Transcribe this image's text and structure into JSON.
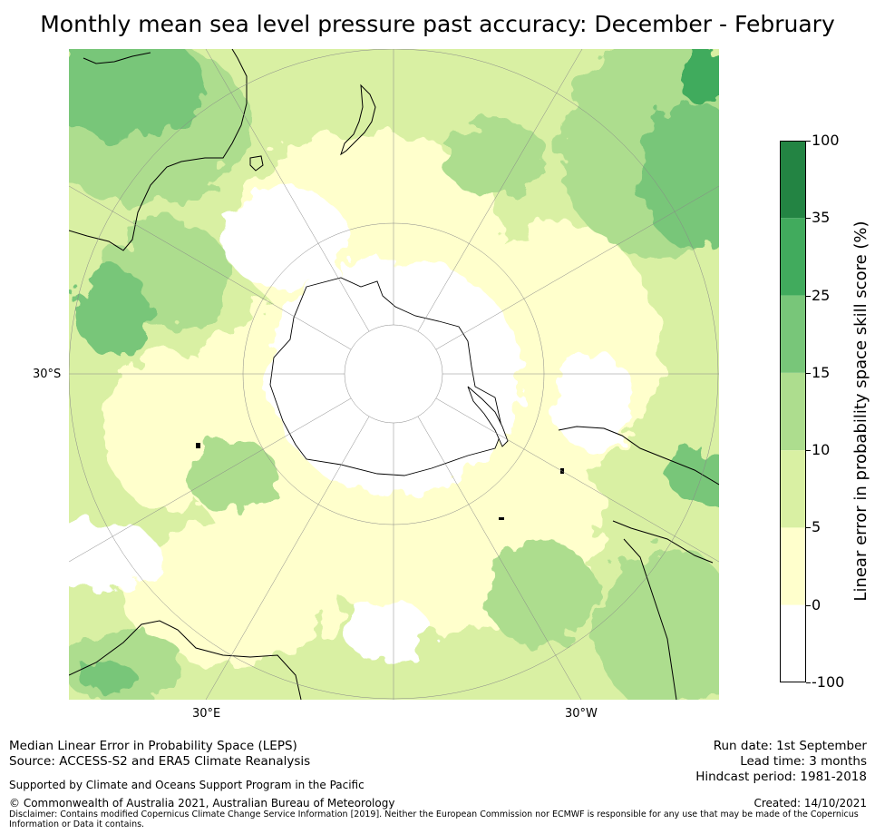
{
  "title": "Monthly mean sea level pressure past accuracy: December - February",
  "map": {
    "lat_labels": [
      {
        "text": "30°S"
      }
    ],
    "lon_labels": [
      {
        "text": "30°E"
      },
      {
        "text": "30°W"
      }
    ]
  },
  "colorbar": {
    "label": "Linear error in probability space skill score (%)",
    "ticks": [
      "100",
      "35",
      "25",
      "15",
      "10",
      "5",
      "0",
      "-100"
    ],
    "colors": [
      "#238443",
      "#41ab5d",
      "#78c679",
      "#addd8e",
      "#d9f0a3",
      "#ffffcc",
      "#ffffff"
    ]
  },
  "footer": {
    "left_line1": "Median Linear Error in Probability Space (LEPS)",
    "left_line2": "Source: ACCESS-S2 and ERA5 Climate Reanalysis",
    "support": "Supported by Climate and Oceans Support Program in the Pacific",
    "copyright": "© Commonwealth of Australia 2021, Australian Bureau of Meteorology",
    "disclaimer_line1": "Disclaimer: Contains modified Copernicus Climate Change Service Information [2019]. Neither the European Commission nor ECMWF is responsible for any use that may be made of the Copernicus",
    "disclaimer_line2": "Information or Data it contains.",
    "run_date": "Run date: 1st September",
    "lead_time": "Lead time: 3 months",
    "hindcast": "Hindcast period: 1981-2018",
    "created": "Created: 14/10/2021"
  }
}
